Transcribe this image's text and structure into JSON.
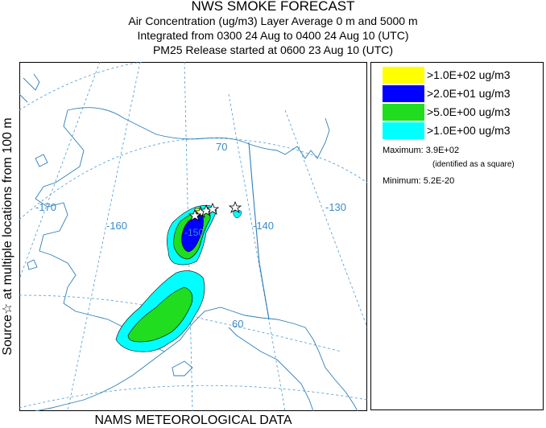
{
  "title": {
    "line1": "NWS SMOKE FORECAST",
    "line2": "Air Concentration (ug/m3) Layer Average    0 m and  5000 m",
    "line3": "Integrated from 0300 24 Aug to 0400 24 Aug 10 (UTC)",
    "line4": "PM25 Release started at 0600 23 Aug 10 (UTC)"
  },
  "side_label": "Source☆ at multiple locations  from  100 m",
  "footer": "NAMS METEOROLOGICAL DATA",
  "map": {
    "grid_labels": {
      "lon_170": "-170",
      "lon_160": "-160",
      "lon_150": "-150",
      "lon_140": "-140",
      "lon_130": "-130",
      "lat_70": "70",
      "lat_60": "60"
    },
    "colors": {
      "land_line": "#2e7fb8",
      "grid_line": "#4a9ad0",
      "grid_label": "#3a8cc8"
    }
  },
  "legend": {
    "items": [
      {
        "label": ">1.0E+02 ug/m3",
        "color": "#ffff00"
      },
      {
        "label": ">2.0E+01 ug/m3",
        "color": "#0000ff"
      },
      {
        "label": ">5.0E+00 ug/m3",
        "color": "#20dd20"
      },
      {
        "label": ">1.0E+00 ug/m3",
        "color": "#00ffff"
      }
    ],
    "maximum": "Maximum: 3.9E+02",
    "identified": "(identified as a square)",
    "minimum": "Minimum: 5.2E-20"
  }
}
